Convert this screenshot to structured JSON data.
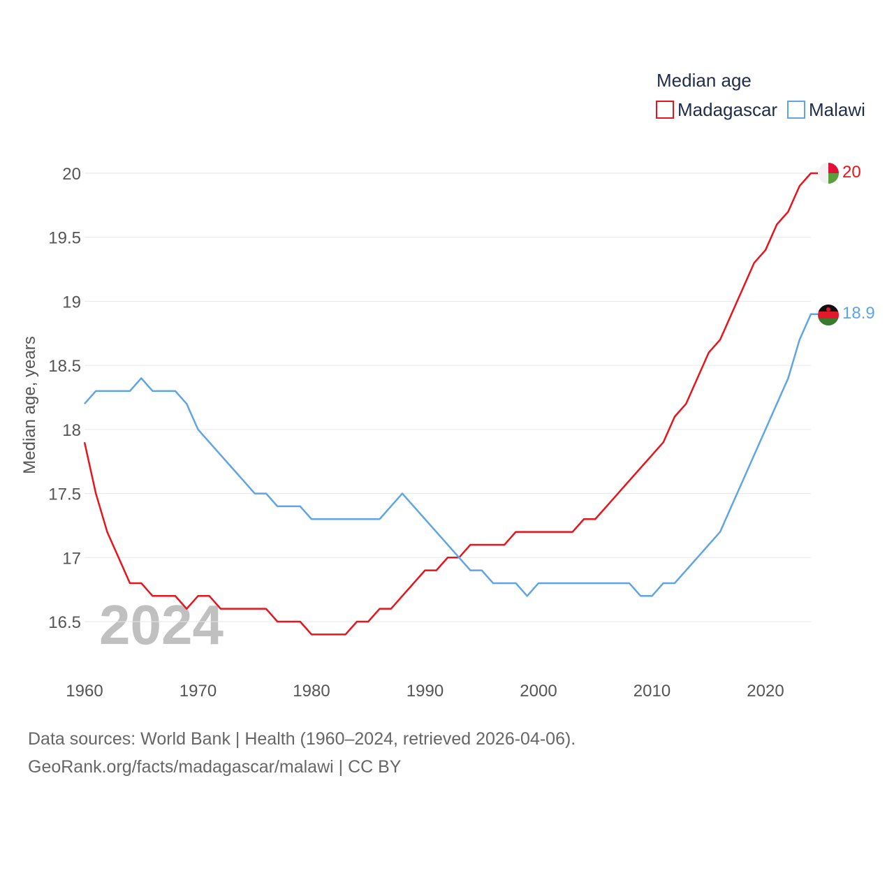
{
  "chart_data": {
    "type": "line",
    "legend_title": "Median age",
    "ylabel": "Median age, years",
    "xlabel": "",
    "ylim": [
      16,
      20.3
    ],
    "xlim": [
      1960,
      2024
    ],
    "yticks": [
      "16.5",
      "17",
      "17.5",
      "18",
      "18.5",
      "19",
      "19.5",
      "20"
    ],
    "yticks_values": [
      16.5,
      17,
      17.5,
      18,
      18.5,
      19,
      19.5,
      20
    ],
    "xticks": [
      "1960",
      "1970",
      "1980",
      "1990",
      "2000",
      "2010",
      "2020"
    ],
    "xticks_values": [
      1960,
      1970,
      1980,
      1990,
      2000,
      2010,
      2020
    ],
    "current_year": "2024",
    "legend_placement": "top-right",
    "x": [
      1960,
      1961,
      1962,
      1963,
      1964,
      1965,
      1966,
      1967,
      1968,
      1969,
      1970,
      1971,
      1972,
      1973,
      1974,
      1975,
      1976,
      1977,
      1978,
      1979,
      1980,
      1981,
      1982,
      1983,
      1984,
      1985,
      1986,
      1987,
      1988,
      1989,
      1990,
      1991,
      1992,
      1993,
      1994,
      1995,
      1996,
      1997,
      1998,
      1999,
      2000,
      2001,
      2002,
      2003,
      2004,
      2005,
      2006,
      2007,
      2008,
      2009,
      2010,
      2011,
      2012,
      2013,
      2014,
      2015,
      2016,
      2017,
      2018,
      2019,
      2020,
      2021,
      2022,
      2023,
      2024
    ],
    "series": [
      {
        "name": "Madagascar",
        "color": "#e8141c",
        "end_label": "20",
        "values": [
          17.9,
          17.5,
          17.2,
          17.0,
          16.8,
          16.8,
          16.7,
          16.7,
          16.7,
          16.6,
          16.7,
          16.7,
          16.6,
          16.6,
          16.6,
          16.6,
          16.6,
          16.5,
          16.5,
          16.5,
          16.4,
          16.4,
          16.4,
          16.4,
          16.5,
          16.5,
          16.6,
          16.6,
          16.7,
          16.8,
          16.9,
          16.9,
          17.0,
          17.0,
          17.1,
          17.1,
          17.1,
          17.1,
          17.2,
          17.2,
          17.2,
          17.2,
          17.2,
          17.2,
          17.3,
          17.3,
          17.4,
          17.5,
          17.6,
          17.7,
          17.8,
          17.9,
          18.1,
          18.2,
          18.4,
          18.6,
          18.7,
          18.9,
          19.1,
          19.3,
          19.4,
          19.6,
          19.7,
          19.9,
          20.0
        ]
      },
      {
        "name": "Malawi",
        "color": "#5fa5e6",
        "end_label": "18.9",
        "values": [
          18.2,
          18.3,
          18.3,
          18.3,
          18.3,
          18.4,
          18.3,
          18.3,
          18.3,
          18.2,
          18.0,
          17.9,
          17.8,
          17.7,
          17.6,
          17.5,
          17.5,
          17.4,
          17.4,
          17.4,
          17.3,
          17.3,
          17.3,
          17.3,
          17.3,
          17.3,
          17.3,
          17.4,
          17.5,
          17.4,
          17.3,
          17.2,
          17.1,
          17.0,
          16.9,
          16.9,
          16.8,
          16.8,
          16.8,
          16.7,
          16.8,
          16.8,
          16.8,
          16.8,
          16.8,
          16.8,
          16.8,
          16.8,
          16.8,
          16.7,
          16.7,
          16.8,
          16.8,
          16.9,
          17.0,
          17.1,
          17.2,
          17.4,
          17.6,
          17.8,
          18.0,
          18.2,
          18.4,
          18.7,
          18.9
        ]
      }
    ]
  },
  "source": {
    "line1": "Data sources: World Bank | Health (1960–2024, retrieved 2026-04-06).",
    "line2": "GeoRank.org/facts/madagascar/malawi | CC BY"
  }
}
